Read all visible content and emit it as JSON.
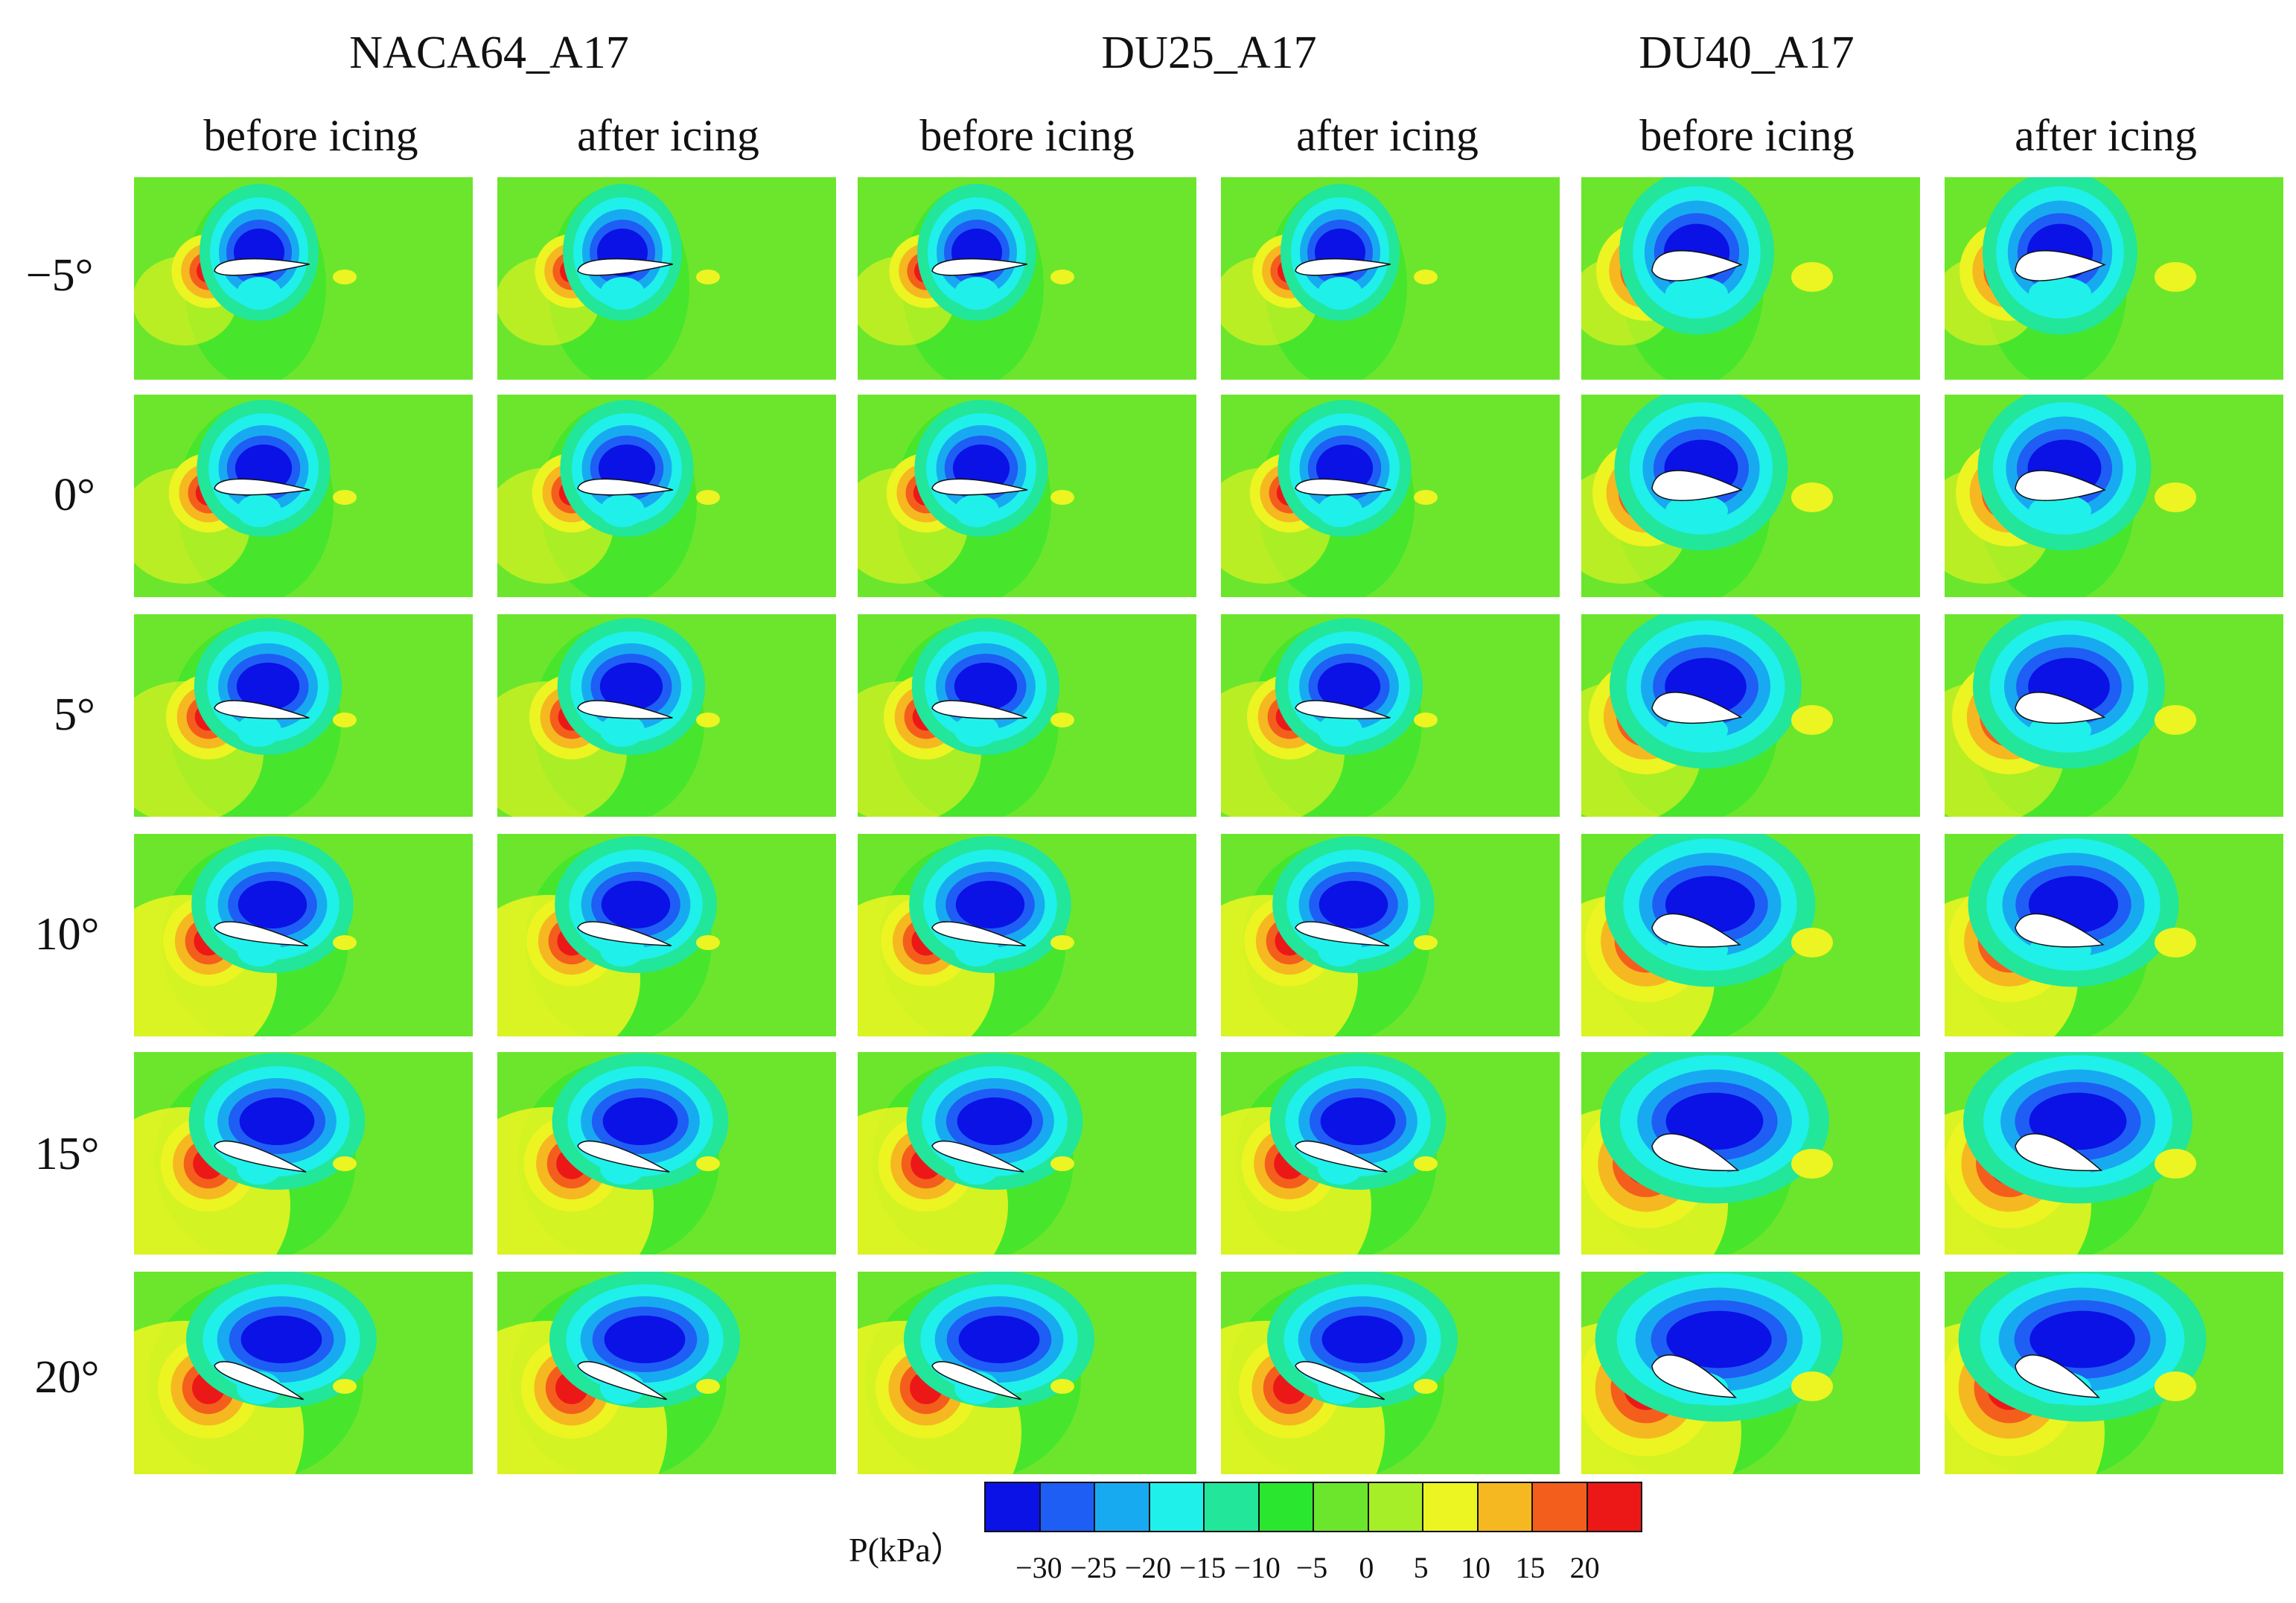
{
  "airfoils": [
    "NACA64_A17",
    "DU25_A17",
    "DU40_A17"
  ],
  "conditions": [
    "before icing",
    "after icing"
  ],
  "angles": [
    "−5°",
    "0°",
    "5°",
    "10°",
    "15°",
    "20°"
  ],
  "colorbar": {
    "title": "P(kPa）",
    "ticks": [
      "−30",
      "−25",
      "−20",
      "−15",
      "−10",
      "−5",
      "0",
      "5",
      "10",
      "15",
      "20"
    ],
    "colors": [
      "#0a12e6",
      "#1e5ef5",
      "#18aaf0",
      "#20f0ea",
      "#22e69a",
      "#2ae62e",
      "#6ce62c",
      "#a6ee28",
      "#ecf422",
      "#f6b820",
      "#f45e1c",
      "#ec1818"
    ]
  },
  "background_color": "#6de62c"
}
